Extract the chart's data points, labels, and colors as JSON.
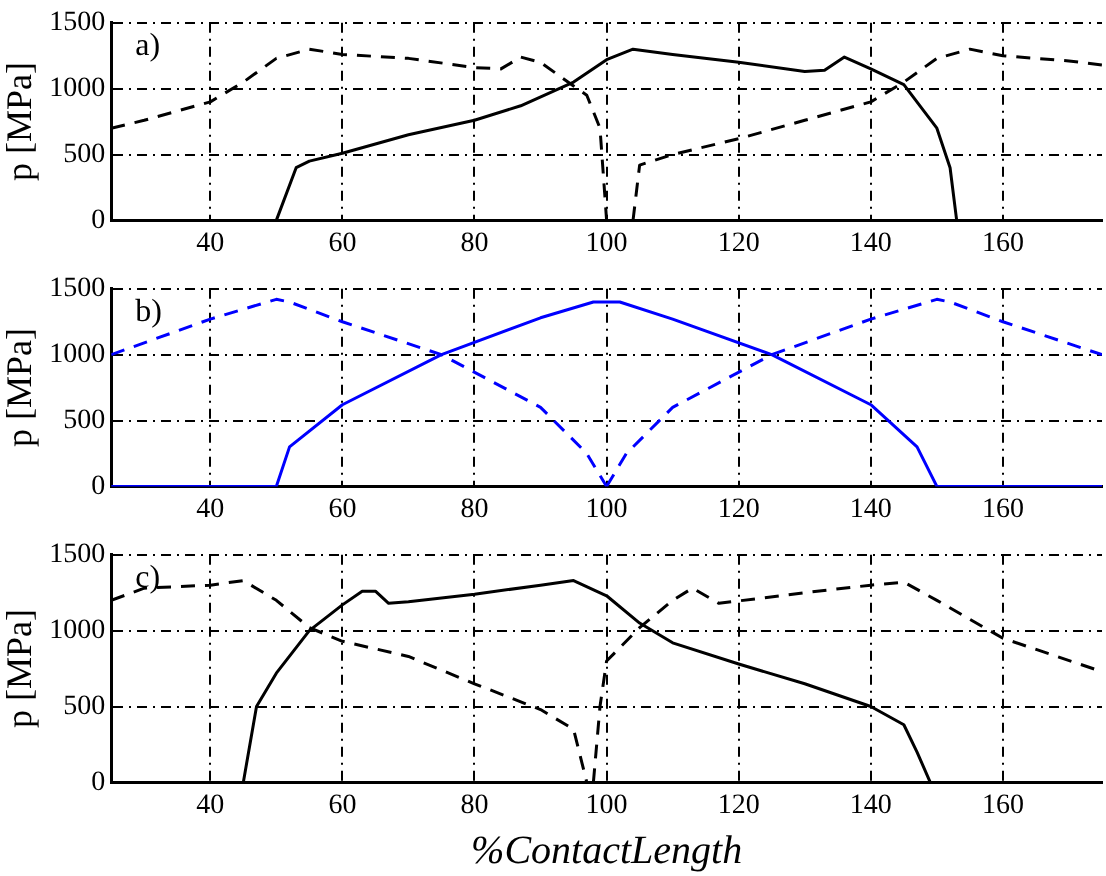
{
  "chart_data": [
    {
      "type": "line",
      "annotations": [
        "a)"
      ],
      "ylabel": "p [MPa]",
      "xlim": [
        25,
        175
      ],
      "xticks": [
        40,
        60,
        80,
        100,
        120,
        140,
        160
      ],
      "ylim": [
        0,
        1500
      ],
      "yticks": [
        0,
        500,
        1000,
        1500
      ],
      "grid": true,
      "series": [
        {
          "color": "#000000",
          "line_style": "dashed",
          "x": [
            25,
            30,
            40,
            45,
            50,
            55,
            60,
            70,
            80,
            84,
            87,
            90,
            95,
            97,
            99,
            100
          ],
          "values": [
            700,
            760,
            900,
            1050,
            1230,
            1300,
            1260,
            1230,
            1160,
            1150,
            1240,
            1200,
            1020,
            950,
            700,
            0
          ]
        },
        {
          "color": "#000000",
          "line_style": "dashed",
          "x": [
            104,
            105,
            110,
            120,
            130,
            140,
            145,
            150,
            155,
            160,
            170,
            175
          ],
          "values": [
            0,
            420,
            500,
            620,
            760,
            900,
            1050,
            1230,
            1300,
            1250,
            1210,
            1180
          ]
        },
        {
          "color": "#000000",
          "line_style": "solid",
          "x": [
            50,
            53,
            55,
            60,
            70,
            80,
            87,
            95,
            100,
            104,
            110,
            120,
            130,
            133,
            136,
            140,
            145,
            150,
            152,
            153
          ],
          "values": [
            0,
            400,
            450,
            510,
            650,
            760,
            870,
            1050,
            1220,
            1300,
            1260,
            1200,
            1130,
            1140,
            1240,
            1150,
            1030,
            700,
            400,
            0
          ]
        }
      ]
    },
    {
      "type": "line",
      "annotations": [
        "b)"
      ],
      "ylabel": "p [MPa]",
      "xlim": [
        25,
        175
      ],
      "xticks": [
        40,
        60,
        80,
        100,
        120,
        140,
        160
      ],
      "ylim": [
        0,
        1500
      ],
      "yticks": [
        0,
        500,
        1000,
        1500
      ],
      "grid": true,
      "series": [
        {
          "color": "#0000ff",
          "line_style": "dashed",
          "x": [
            25,
            40,
            50,
            52,
            60,
            75,
            90,
            97,
            100
          ],
          "values": [
            1000,
            1270,
            1420,
            1400,
            1250,
            1000,
            600,
            250,
            0
          ]
        },
        {
          "color": "#0000ff",
          "line_style": "dashed",
          "x": [
            100,
            103,
            110,
            125,
            140,
            150,
            152,
            160,
            175
          ],
          "values": [
            0,
            250,
            600,
            1000,
            1270,
            1420,
            1400,
            1250,
            1000
          ]
        },
        {
          "color": "#0000ff",
          "line_style": "solid",
          "x": [
            25,
            50,
            52,
            60,
            75,
            90,
            98,
            102,
            110,
            125,
            140,
            147,
            150,
            175
          ],
          "values": [
            0,
            0,
            300,
            620,
            1000,
            1280,
            1400,
            1400,
            1270,
            1000,
            620,
            300,
            0,
            0
          ]
        }
      ]
    },
    {
      "type": "line",
      "annotations": [
        "c)"
      ],
      "xlabel": "%ContactLength",
      "ylabel": "p [MPa]",
      "xlim": [
        25,
        175
      ],
      "xticks": [
        40,
        60,
        80,
        100,
        120,
        140,
        160
      ],
      "ylim": [
        0,
        1500
      ],
      "yticks": [
        0,
        500,
        1000,
        1500
      ],
      "grid": true,
      "series": [
        {
          "color": "#000000",
          "line_style": "dashed",
          "x": [
            25,
            30,
            40,
            45,
            50,
            55,
            60,
            70,
            80,
            90,
            95,
            97
          ],
          "values": [
            1200,
            1280,
            1300,
            1330,
            1200,
            1020,
            930,
            830,
            650,
            480,
            350,
            0
          ]
        },
        {
          "color": "#000000",
          "line_style": "dashed",
          "x": [
            98,
            99,
            100,
            105,
            110,
            113,
            117,
            130,
            140,
            145,
            150,
            160,
            175
          ],
          "values": [
            0,
            500,
            800,
            1020,
            1200,
            1280,
            1180,
            1250,
            1300,
            1320,
            1200,
            950,
            730
          ]
        },
        {
          "color": "#000000",
          "line_style": "solid",
          "x": [
            45,
            47,
            50,
            55,
            60,
            63,
            65,
            67,
            70,
            80,
            90,
            95,
            100,
            105,
            110,
            120,
            130,
            140,
            145,
            147,
            149
          ],
          "values": [
            0,
            500,
            720,
            1000,
            1170,
            1260,
            1260,
            1180,
            1190,
            1240,
            1300,
            1330,
            1230,
            1050,
            920,
            780,
            650,
            500,
            380,
            200,
            0
          ]
        }
      ]
    }
  ]
}
